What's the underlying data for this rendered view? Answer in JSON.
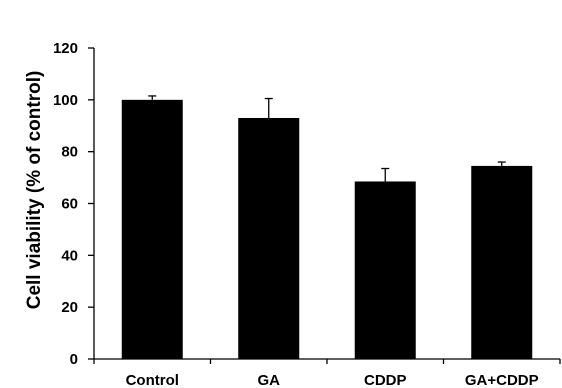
{
  "chart_data": {
    "type": "bar",
    "categories": [
      "Control",
      "GA",
      "CDDP",
      "GA+CDDP"
    ],
    "values": [
      100,
      93,
      68.5,
      74.5
    ],
    "errors": [
      1.5,
      7.5,
      5,
      1.5
    ],
    "title": "",
    "xlabel": "",
    "ylabel": "Cell viability (% of control)",
    "ylim": [
      0,
      120
    ],
    "yticks": [
      0,
      20,
      40,
      60,
      80,
      100,
      120
    ],
    "grid": false,
    "bar_color": "#000000"
  }
}
